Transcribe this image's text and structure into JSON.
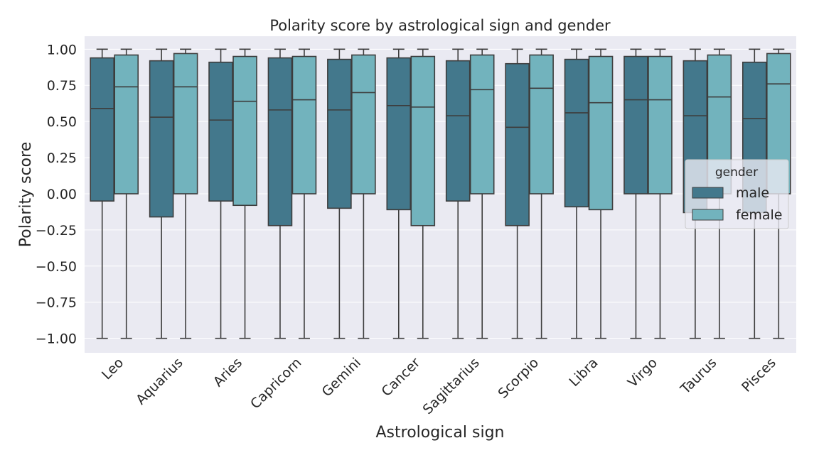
{
  "chart_data": {
    "type": "boxplot",
    "title": "Polarity score by astrological sign and gender",
    "xlabel": "Astrological sign",
    "ylabel": "Polarity score",
    "ylim": [
      -1.1,
      1.09
    ],
    "yticks": [
      -1.0,
      -0.75,
      -0.5,
      -0.25,
      0.0,
      0.25,
      0.5,
      0.75,
      1.0
    ],
    "ytick_labels": [
      "−1.00",
      "−0.75",
      "−0.50",
      "−0.25",
      "0.00",
      "0.25",
      "0.50",
      "0.75",
      "1.00"
    ],
    "grid": true,
    "legend": {
      "title": "gender",
      "placement": "center-right"
    },
    "categories": [
      "Leo",
      "Aquarius",
      "Aries",
      "Capricorn",
      "Gemini",
      "Cancer",
      "Sagittarius",
      "Scorpio",
      "Libra",
      "Virgo",
      "Taurus",
      "Pisces"
    ],
    "series": [
      {
        "name": "male",
        "color": "#43788c",
        "boxes": [
          {
            "whislo": -1.0,
            "q1": -0.05,
            "med": 0.59,
            "q3": 0.94,
            "whishi": 1.0
          },
          {
            "whislo": -1.0,
            "q1": -0.16,
            "med": 0.53,
            "q3": 0.92,
            "whishi": 1.0
          },
          {
            "whislo": -1.0,
            "q1": -0.05,
            "med": 0.51,
            "q3": 0.91,
            "whishi": 1.0
          },
          {
            "whislo": -1.0,
            "q1": -0.22,
            "med": 0.58,
            "q3": 0.94,
            "whishi": 1.0
          },
          {
            "whislo": -1.0,
            "q1": -0.1,
            "med": 0.58,
            "q3": 0.93,
            "whishi": 1.0
          },
          {
            "whislo": -1.0,
            "q1": -0.11,
            "med": 0.61,
            "q3": 0.94,
            "whishi": 1.0
          },
          {
            "whislo": -1.0,
            "q1": -0.05,
            "med": 0.54,
            "q3": 0.92,
            "whishi": 1.0
          },
          {
            "whislo": -1.0,
            "q1": -0.22,
            "med": 0.46,
            "q3": 0.9,
            "whishi": 1.0
          },
          {
            "whislo": -1.0,
            "q1": -0.09,
            "med": 0.56,
            "q3": 0.93,
            "whishi": 1.0
          },
          {
            "whislo": -1.0,
            "q1": 0.0,
            "med": 0.65,
            "q3": 0.95,
            "whishi": 1.0
          },
          {
            "whislo": -1.0,
            "q1": -0.13,
            "med": 0.54,
            "q3": 0.92,
            "whishi": 1.0
          },
          {
            "whislo": -1.0,
            "q1": -0.13,
            "med": 0.52,
            "q3": 0.91,
            "whishi": 1.0
          }
        ]
      },
      {
        "name": "female",
        "color": "#72b3bd",
        "boxes": [
          {
            "whislo": -1.0,
            "q1": 0.0,
            "med": 0.74,
            "q3": 0.96,
            "whishi": 1.0
          },
          {
            "whislo": -1.0,
            "q1": 0.0,
            "med": 0.74,
            "q3": 0.97,
            "whishi": 1.0
          },
          {
            "whislo": -1.0,
            "q1": -0.08,
            "med": 0.64,
            "q3": 0.95,
            "whishi": 1.0
          },
          {
            "whislo": -1.0,
            "q1": 0.0,
            "med": 0.65,
            "q3": 0.95,
            "whishi": 1.0
          },
          {
            "whislo": -1.0,
            "q1": 0.0,
            "med": 0.7,
            "q3": 0.96,
            "whishi": 1.0
          },
          {
            "whislo": -1.0,
            "q1": -0.22,
            "med": 0.6,
            "q3": 0.95,
            "whishi": 1.0
          },
          {
            "whislo": -1.0,
            "q1": 0.0,
            "med": 0.72,
            "q3": 0.96,
            "whishi": 1.0
          },
          {
            "whislo": -1.0,
            "q1": 0.0,
            "med": 0.73,
            "q3": 0.96,
            "whishi": 1.0
          },
          {
            "whislo": -1.0,
            "q1": -0.11,
            "med": 0.63,
            "q3": 0.95,
            "whishi": 1.0
          },
          {
            "whislo": -1.0,
            "q1": 0.0,
            "med": 0.65,
            "q3": 0.95,
            "whishi": 1.0
          },
          {
            "whislo": -1.0,
            "q1": 0.0,
            "med": 0.67,
            "q3": 0.96,
            "whishi": 1.0
          },
          {
            "whislo": -1.0,
            "q1": 0.0,
            "med": 0.76,
            "q3": 0.97,
            "whishi": 1.0
          }
        ]
      }
    ],
    "colors": {
      "plot_background": "#eaeaf2",
      "gridline": "#ffffff",
      "line": "#3d3d3d"
    }
  }
}
